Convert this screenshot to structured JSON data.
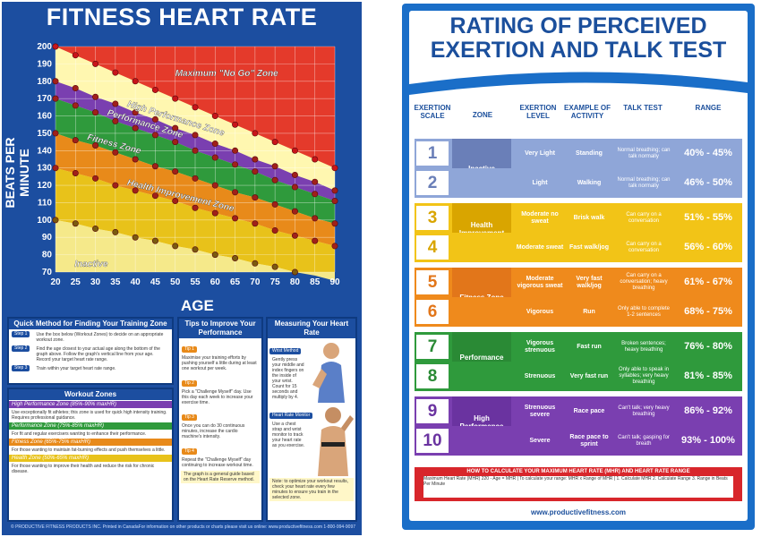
{
  "left": {
    "title": "FITNESS HEART RATE",
    "ylabel": "BEATS PER MINUTE",
    "xlabel": "AGE",
    "quick": {
      "title": "Quick Method for Finding Your Training Zone",
      "steps": [
        {
          "badge": "Step 1",
          "text": "Use the box below (Workout Zones) to decide on an appropriate workout zone."
        },
        {
          "badge": "Step 2",
          "text": "Find the age closest to your actual age along the bottom of the graph above. Follow the graph's vertical line from your age. Record your target heart rate range."
        },
        {
          "badge": "Step 3",
          "text": "Train within your target heart rate range."
        }
      ]
    },
    "zones_panel": {
      "title": "Workout Zones",
      "items": [
        {
          "name": "High Performance Zone (85%-90% maxHR)",
          "color": "#7a3fb0",
          "text": "Use exceptionally fit athletes; this zone is used for quick high intensity training. Requires professional guidance."
        },
        {
          "name": "Performance Zone (75%-85% maxHR)",
          "color": "#2f9a3c",
          "text": "For fit and regular exercisers wanting to enhance their performance."
        },
        {
          "name": "Fitness Zone (65%-75% maxHR)",
          "color": "#e88a1a",
          "text": "For those wanting to maintain fat-burning effects and push themselves a little."
        },
        {
          "name": "Health Zone (50%-65% maxHR)",
          "color": "#e8c21a",
          "text": "For those wanting to improve their health and reduce the risk for chronic disease."
        }
      ]
    },
    "tips": {
      "title": "Tips to Improve Your Performance",
      "steps": [
        {
          "badge": "Tip 1",
          "text": "Maximise your training efforts by pushing yourself a little during at least one workout per week."
        },
        {
          "badge": "Tip 2",
          "text": "Pick a \"Challenge Myself\" day. Use this day each week to increase your exercise time."
        },
        {
          "badge": "Tip 3",
          "text": "Once you can do 30 continuous minutes, increase the cardio machine's intensity."
        },
        {
          "badge": "Tip 4",
          "text": "Repeat the \"Challenge Myself\" day continuing to increase workout time."
        }
      ],
      "note": "The graph is a general guide based on the Heart Rate Reserve method."
    },
    "measuring": {
      "title": "Measuring Your Heart Rate",
      "wrist_label": "Wrist Method",
      "wrist_text": "Gently press your middle and index fingers on the inside of your wrist. Count for 15 seconds and multiply by 4.",
      "monitor_label": "Heart Rate Monitor",
      "monitor_text": "Use a chest strap and wrist monitor to track your heart rate as you exercise.",
      "note": "Note: to optimize your workout results, check your heart rate every few minutes to ensure you train in the selected zone."
    },
    "footer_left": "© PRODUCTIVE FITNESS PRODUCTS INC. Printed in Canada",
    "footer_right": "For information on other products or charts please visit us online: www.productivefitness.com 1-800-994-9097"
  },
  "chart_data": {
    "type": "line",
    "title": "FITNESS HEART RATE",
    "xlabel": "AGE",
    "ylabel": "BEATS PER MINUTE",
    "x": [
      20,
      25,
      30,
      35,
      40,
      45,
      50,
      55,
      60,
      65,
      70,
      75,
      80,
      85,
      90
    ],
    "xlim": [
      20,
      90
    ],
    "ylim": [
      70,
      200
    ],
    "yticks": [
      70,
      80,
      90,
      100,
      110,
      120,
      130,
      140,
      150,
      160,
      170,
      180,
      190,
      200
    ],
    "series": [
      {
        "name": "Maximum \"No Go\" Zone",
        "values": [
          200,
          195,
          190,
          185,
          180,
          175,
          170,
          165,
          160,
          155,
          150,
          145,
          140,
          135,
          130
        ],
        "color": "#e43a2b"
      },
      {
        "name": "High Performance Zone",
        "values": [
          180,
          176,
          171,
          167,
          162,
          158,
          153,
          149,
          144,
          140,
          135,
          131,
          126,
          122,
          117
        ],
        "color": "#7a3fb0"
      },
      {
        "name": "Performance Zone",
        "values": [
          170,
          166,
          162,
          157,
          153,
          149,
          145,
          140,
          136,
          132,
          128,
          123,
          119,
          115,
          111
        ],
        "color": "#2f9a3c"
      },
      {
        "name": "Fitness Zone",
        "values": [
          150,
          146,
          143,
          139,
          135,
          131,
          128,
          124,
          120,
          116,
          113,
          109,
          105,
          101,
          98
        ],
        "color": "#e88a1a"
      },
      {
        "name": "Health Improvement Zone",
        "values": [
          130,
          127,
          124,
          120,
          117,
          114,
          111,
          107,
          104,
          101,
          98,
          94,
          91,
          88,
          85
        ],
        "color": "#e8c21a"
      },
      {
        "name": "Inactive",
        "values": [
          100,
          98,
          95,
          93,
          90,
          88,
          85,
          83,
          80,
          78,
          75,
          73,
          70,
          68,
          65
        ],
        "color": "#f5e98a"
      }
    ],
    "grid": true
  },
  "right": {
    "title_line1": "RATING OF PERCEIVED",
    "title_line2": "EXERTION AND TALK TEST",
    "headers": {
      "scale": "EXERTION SCALE",
      "zone": "ZONE",
      "level": "EXERTION LEVEL",
      "activity": "EXAMPLE OF ACTIVITY",
      "talk": "TALK TEST",
      "range": "RANGE"
    },
    "rows": [
      {
        "num": "1",
        "zone": "Inactive",
        "level": "Very Light",
        "activity": "Standing",
        "talk": "Normal breathing; can talk normally",
        "range": "40% - 45%",
        "color": "#8fa6d8",
        "numcolor": "#6a7fb8"
      },
      {
        "num": "2",
        "zone": "",
        "level": "Light",
        "activity": "Walking",
        "talk": "Normal breathing; can talk normally",
        "range": "46% - 50%",
        "color": "#8fa6d8",
        "numcolor": "#6a7fb8"
      },
      {
        "num": "3",
        "zone": "Health Improvement Zone",
        "level": "Moderate no sweat",
        "activity": "Brisk walk",
        "talk": "Can carry on a conversation",
        "range": "51% - 55%",
        "color": "#f2c417",
        "numcolor": "#d9a500"
      },
      {
        "num": "4",
        "zone": "",
        "level": "Moderate sweat",
        "activity": "Fast walk/jog",
        "talk": "Can carry on a conversation",
        "range": "56% - 60%",
        "color": "#f2c417",
        "numcolor": "#d9a500"
      },
      {
        "num": "5",
        "zone": "Fitness Zone",
        "level": "Moderate vigorous sweat",
        "activity": "Very fast walk/jog",
        "talk": "Can carry on a conversation; heavy breathing",
        "range": "61% - 67%",
        "color": "#ef8a1c",
        "numcolor": "#e2761a"
      },
      {
        "num": "6",
        "zone": "",
        "level": "Vigorous",
        "activity": "Run",
        "talk": "Only able to complete 1-2 sentences",
        "range": "68% - 75%",
        "color": "#ef8a1c",
        "numcolor": "#e2761a"
      },
      {
        "num": "7",
        "zone": "Performance Zone",
        "level": "Vigorous strenuous",
        "activity": "Fast run",
        "talk": "Broken sentences; heavy breathing",
        "range": "76% - 80%",
        "color": "#2f9a3c",
        "numcolor": "#2a8a35"
      },
      {
        "num": "8",
        "zone": "",
        "level": "Strenuous",
        "activity": "Very fast run",
        "talk": "Only able to speak in syllables; very heavy breathing",
        "range": "81% - 85%",
        "color": "#2f9a3c",
        "numcolor": "#2a8a35"
      },
      {
        "num": "9",
        "zone": "High Performance Zone",
        "level": "Strenuous severe",
        "activity": "Race pace",
        "talk": "Can't talk; very heavy breathing",
        "range": "86% - 92%",
        "color": "#7a3fb0",
        "numcolor": "#6a33a0"
      },
      {
        "num": "10",
        "zone": "",
        "level": "Severe",
        "activity": "Race pace to sprint",
        "talk": "Can't talk; gasping for breath",
        "range": "93% - 100%",
        "color": "#7a3fb0",
        "numcolor": "#6a33a0"
      }
    ],
    "calc_title": "HOW TO CALCULATE YOUR MAXIMUM HEART RATE (MHR) AND HEART RATE RANGE",
    "calc_text": "Maximum Heart Rate (MHR) 220 - Age = MHR | To calculate your range: MHR x Range of MHR | 1. Calculate MHR 2. Calculate Range 3. Range in Beats Per Minute",
    "footer": "www.productivefitness.com"
  }
}
